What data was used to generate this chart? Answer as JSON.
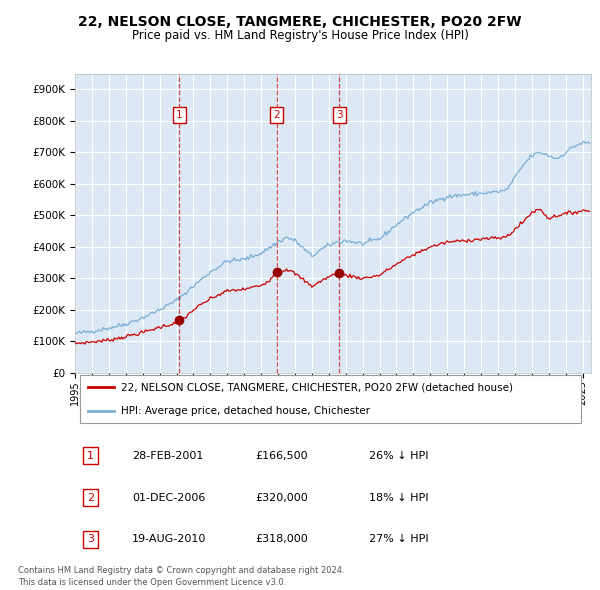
{
  "title": "22, NELSON CLOSE, TANGMERE, CHICHESTER, PO20 2FW",
  "subtitle": "Price paid vs. HM Land Registry's House Price Index (HPI)",
  "background_color": "#ffffff",
  "plot_bg_color": "#dce9f5",
  "grid_color": "#ffffff",
  "ylabel_ticks": [
    "£0",
    "£100K",
    "£200K",
    "£300K",
    "£400K",
    "£500K",
    "£600K",
    "£700K",
    "£800K",
    "£900K"
  ],
  "ytick_values": [
    0,
    100000,
    200000,
    300000,
    400000,
    500000,
    600000,
    700000,
    800000,
    900000
  ],
  "ylim": [
    0,
    950000
  ],
  "xlim_start": 1995.0,
  "xlim_end": 2025.5,
  "price_paid_color": "#cc0000",
  "hpi_color": "#7aadd4",
  "legend_label_price": "22, NELSON CLOSE, TANGMERE, CHICHESTER, PO20 2FW (detached house)",
  "legend_label_hpi": "HPI: Average price, detached house, Chichester",
  "sales": [
    {
      "date": 2001.16,
      "price": 166500,
      "label": "1"
    },
    {
      "date": 2006.92,
      "price": 320000,
      "label": "2"
    },
    {
      "date": 2010.63,
      "price": 318000,
      "label": "3"
    }
  ],
  "sale_details": [
    {
      "num": "1",
      "date": "28-FEB-2001",
      "price": "£166,500",
      "hpi": "26% ↓ HPI"
    },
    {
      "num": "2",
      "date": "01-DEC-2006",
      "price": "£320,000",
      "hpi": "18% ↓ HPI"
    },
    {
      "num": "3",
      "date": "19-AUG-2010",
      "price": "£318,000",
      "hpi": "27% ↓ HPI"
    }
  ],
  "footer": "Contains HM Land Registry data © Crown copyright and database right 2024.\nThis data is licensed under the Open Government Licence v3.0.",
  "xtick_years": [
    1995,
    1996,
    1997,
    1998,
    1999,
    2000,
    2001,
    2002,
    2003,
    2004,
    2005,
    2006,
    2007,
    2008,
    2009,
    2010,
    2011,
    2012,
    2013,
    2014,
    2015,
    2016,
    2017,
    2018,
    2019,
    2020,
    2021,
    2022,
    2023,
    2024,
    2025
  ],
  "hpi_anchors": {
    "1995.0": 125000,
    "1996.0": 132000,
    "1997.0": 142000,
    "1998.0": 155000,
    "1999.0": 175000,
    "2000.0": 200000,
    "2001.0": 230000,
    "2002.0": 275000,
    "2003.0": 320000,
    "2004.0": 355000,
    "2005.0": 360000,
    "2006.0": 380000,
    "2007.0": 415000,
    "2007.5": 430000,
    "2008.0": 420000,
    "2008.5": 395000,
    "2009.0": 370000,
    "2009.5": 390000,
    "2010.0": 405000,
    "2010.5": 415000,
    "2011.0": 420000,
    "2011.5": 415000,
    "2012.0": 410000,
    "2013.0": 425000,
    "2014.0": 470000,
    "2015.0": 510000,
    "2016.0": 540000,
    "2017.0": 560000,
    "2018.0": 565000,
    "2019.0": 570000,
    "2020.0": 575000,
    "2020.5": 580000,
    "2021.0": 620000,
    "2021.5": 660000,
    "2022.0": 690000,
    "2022.5": 700000,
    "2023.0": 690000,
    "2023.5": 680000,
    "2024.0": 700000,
    "2024.5": 720000,
    "2025.0": 730000
  },
  "pp_anchors": {
    "1995.0": 93000,
    "1996.0": 98000,
    "1997.0": 104000,
    "1998.0": 115000,
    "1999.0": 128000,
    "2000.0": 145000,
    "2001.0": 158000,
    "2001.16": 166500,
    "2001.5": 175000,
    "2002.0": 200000,
    "2003.0": 235000,
    "2004.0": 260000,
    "2005.0": 265000,
    "2006.0": 278000,
    "2006.5": 295000,
    "2006.92": 320000,
    "2007.0": 315000,
    "2007.5": 330000,
    "2008.0": 315000,
    "2008.5": 295000,
    "2009.0": 275000,
    "2009.5": 290000,
    "2010.0": 305000,
    "2010.63": 318000,
    "2010.8": 315000,
    "2011.0": 310000,
    "2011.5": 305000,
    "2012.0": 300000,
    "2013.0": 310000,
    "2014.0": 345000,
    "2015.0": 375000,
    "2016.0": 400000,
    "2017.0": 415000,
    "2018.0": 420000,
    "2019.0": 425000,
    "2020.0": 428000,
    "2020.5": 432000,
    "2021.0": 455000,
    "2021.5": 480000,
    "2022.0": 510000,
    "2022.5": 520000,
    "2023.0": 490000,
    "2023.5": 500000,
    "2024.0": 505000,
    "2024.5": 510000,
    "2025.0": 515000
  }
}
